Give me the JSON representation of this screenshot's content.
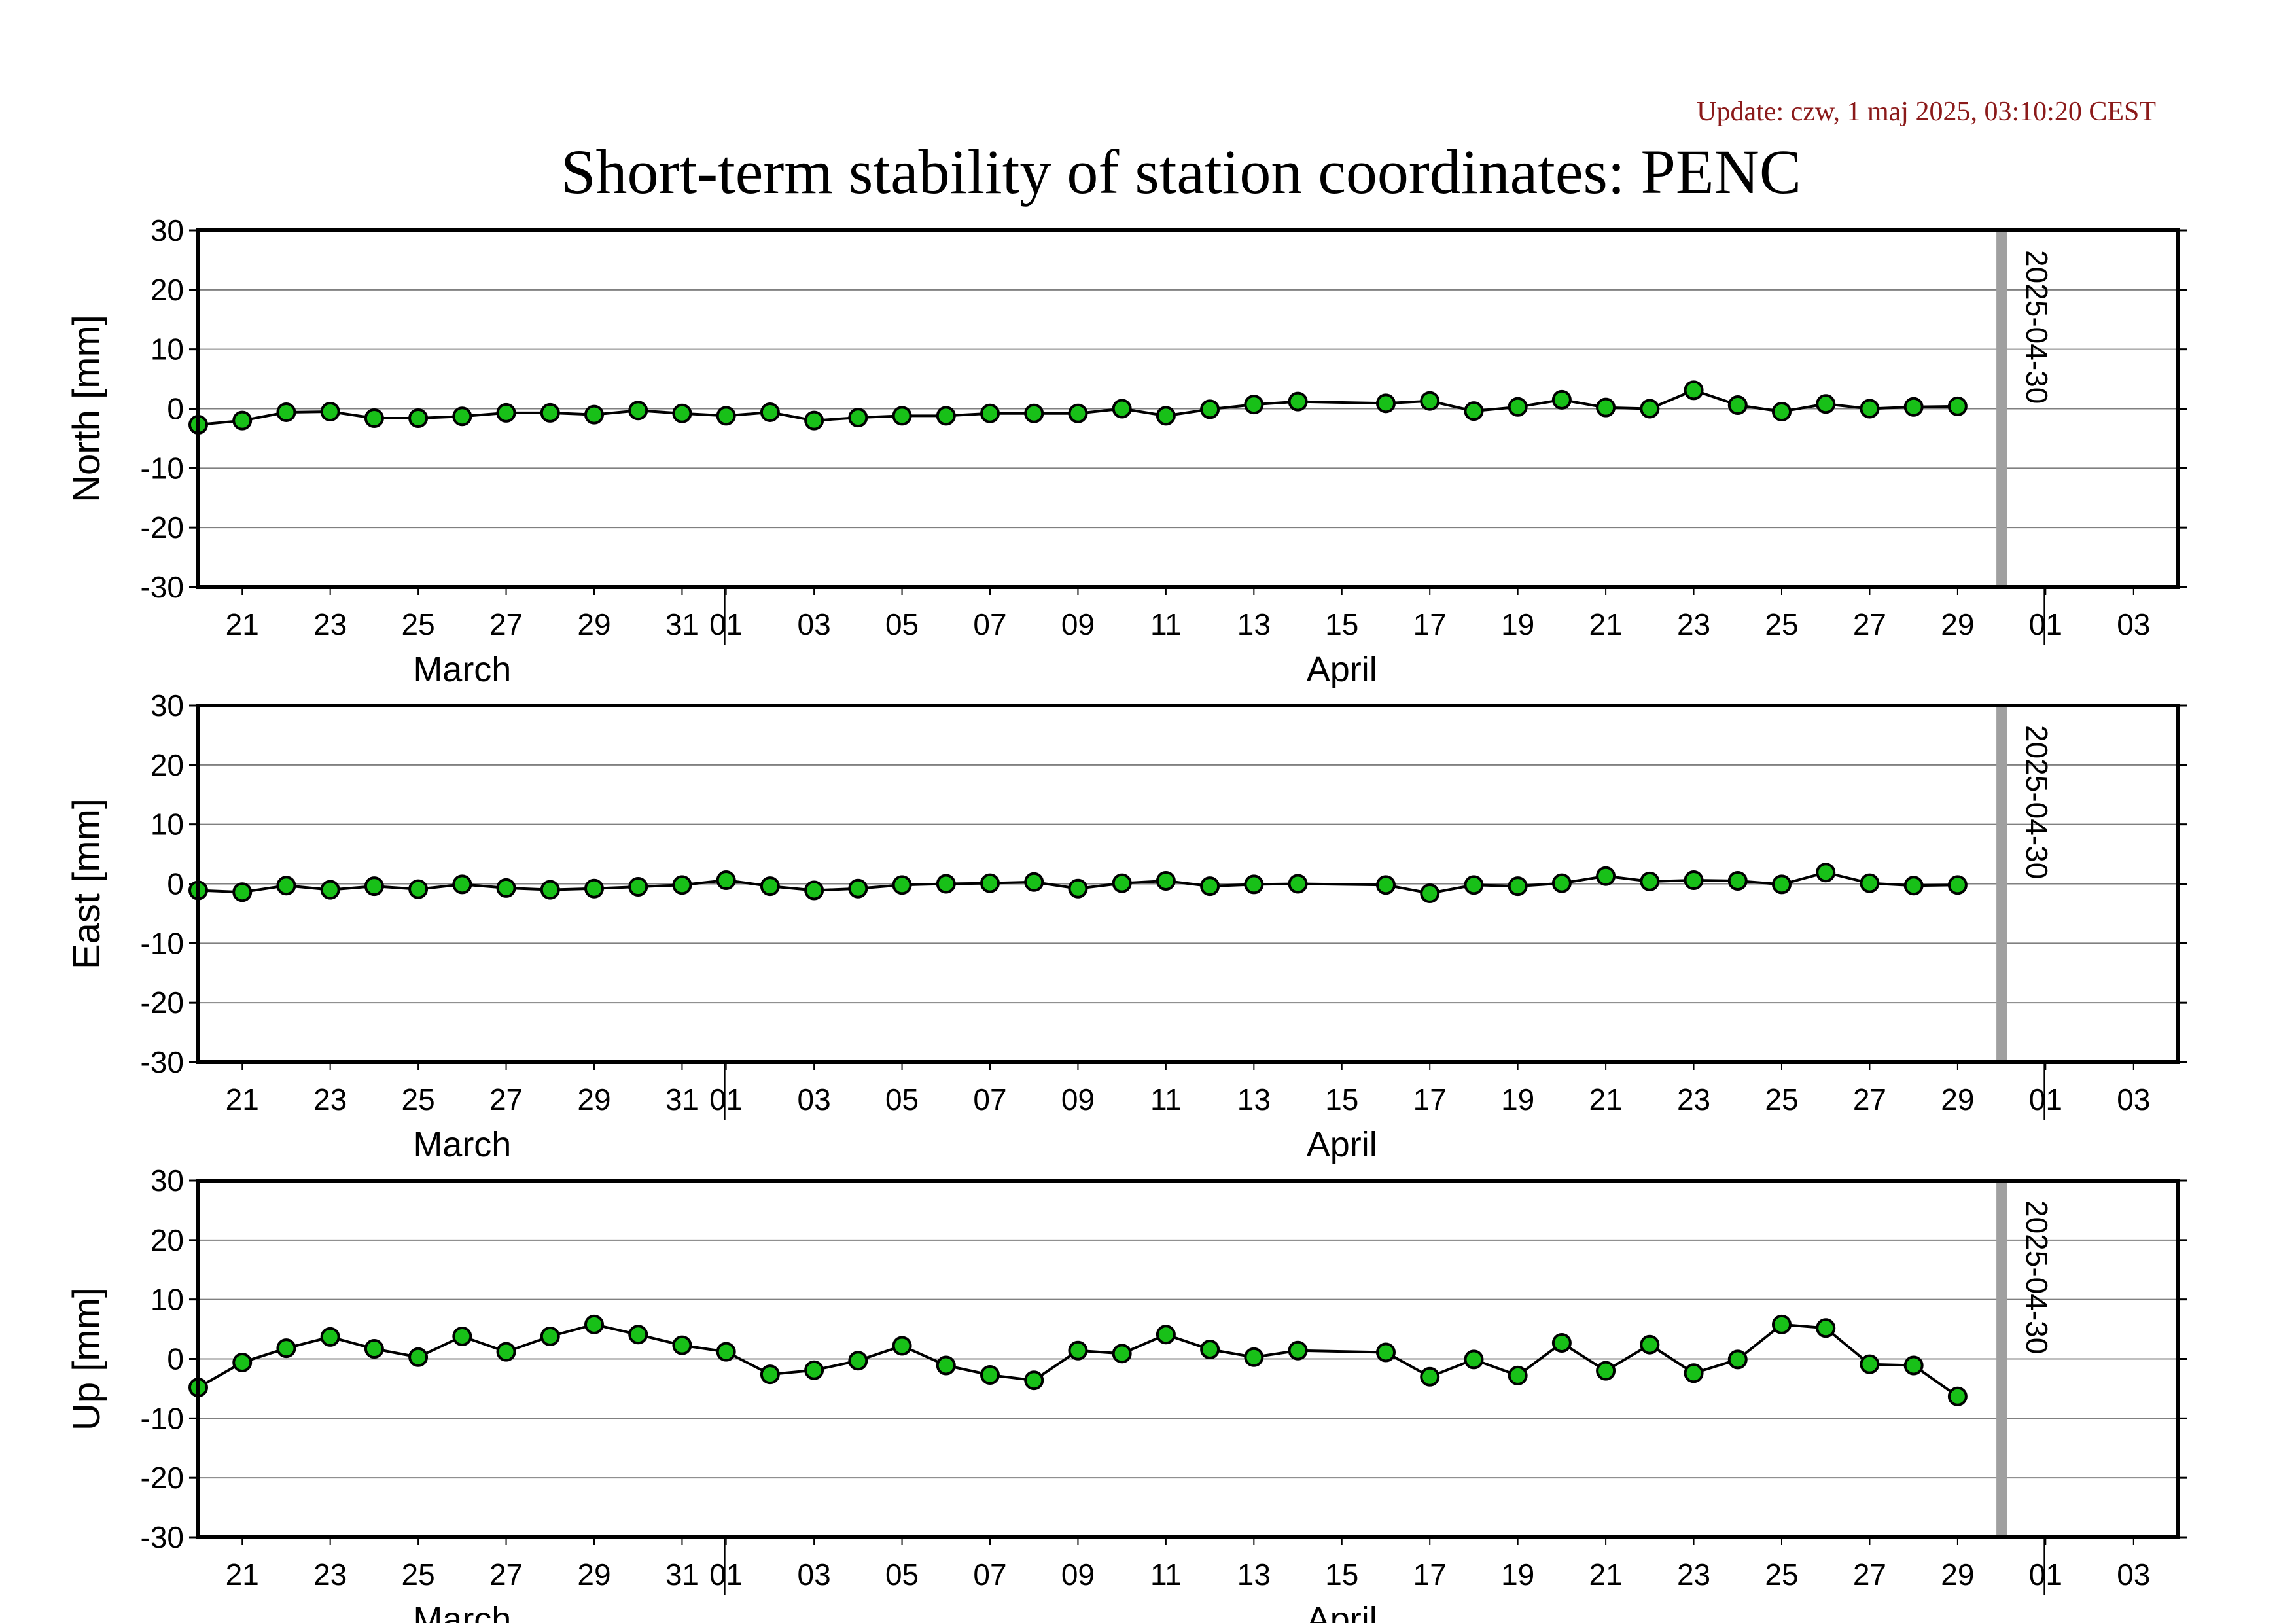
{
  "update_text": "Update: czw, 1 maj 2025, 03:10:20 CEST",
  "title": "Short-term stability of station coordinates: PENC",
  "colors": {
    "update": "#8b1a1a",
    "point_fill": "#18c018",
    "marker_line": "#a0a0a0",
    "grid": "#808080"
  },
  "chart_data": {
    "type": "line",
    "x_range": [
      "2025-03-20",
      "2025-05-04"
    ],
    "x_tick_labels": [
      "21",
      "23",
      "25",
      "27",
      "29",
      "31",
      "01",
      "03",
      "05",
      "07",
      "09",
      "11",
      "13",
      "15",
      "17",
      "19",
      "21",
      "23",
      "25",
      "27",
      "29",
      "01",
      "03"
    ],
    "x_tick_dates": [
      "2025-03-21",
      "2025-03-23",
      "2025-03-25",
      "2025-03-27",
      "2025-03-29",
      "2025-03-31",
      "2025-04-01",
      "2025-04-03",
      "2025-04-05",
      "2025-04-07",
      "2025-04-09",
      "2025-04-11",
      "2025-04-13",
      "2025-04-15",
      "2025-04-17",
      "2025-04-19",
      "2025-04-21",
      "2025-04-23",
      "2025-04-25",
      "2025-04-27",
      "2025-04-29",
      "2025-05-01",
      "2025-05-03"
    ],
    "month_labels": [
      {
        "label": "March",
        "date": "2025-03-26"
      },
      {
        "label": "April",
        "date": "2025-04-15"
      }
    ],
    "month_boundaries": [
      "2025-04-01",
      "2025-05-01"
    ],
    "marker": {
      "date": "2025-04-30",
      "label": "2025-04-30"
    },
    "ylim": [
      -30,
      30
    ],
    "y_ticks": [
      30,
      20,
      10,
      0,
      -10,
      -20,
      -30
    ],
    "grid": true,
    "panels": [
      {
        "ylabel": "North [mm]",
        "points": [
          [
            "2025-03-20",
            -2.7
          ],
          [
            "2025-03-21",
            -2.0
          ],
          [
            "2025-03-22",
            -0.6
          ],
          [
            "2025-03-23",
            -0.5
          ],
          [
            "2025-03-24",
            -1.6
          ],
          [
            "2025-03-25",
            -1.6
          ],
          [
            "2025-03-26",
            -1.3
          ],
          [
            "2025-03-27",
            -0.7
          ],
          [
            "2025-03-28",
            -0.7
          ],
          [
            "2025-03-29",
            -1.0
          ],
          [
            "2025-03-30",
            -0.3
          ],
          [
            "2025-03-31",
            -0.8
          ],
          [
            "2025-04-01",
            -1.2
          ],
          [
            "2025-04-02",
            -0.6
          ],
          [
            "2025-04-03",
            -2.0
          ],
          [
            "2025-04-04",
            -1.5
          ],
          [
            "2025-04-05",
            -1.2
          ],
          [
            "2025-04-06",
            -1.2
          ],
          [
            "2025-04-07",
            -0.8
          ],
          [
            "2025-04-08",
            -0.8
          ],
          [
            "2025-04-09",
            -0.8
          ],
          [
            "2025-04-10",
            0.0
          ],
          [
            "2025-04-11",
            -1.2
          ],
          [
            "2025-04-12",
            -0.1
          ],
          [
            "2025-04-13",
            0.7
          ],
          [
            "2025-04-14",
            1.2
          ],
          [
            "2025-04-16",
            0.9
          ],
          [
            "2025-04-17",
            1.3
          ],
          [
            "2025-04-18",
            -0.4
          ],
          [
            "2025-04-19",
            0.3
          ],
          [
            "2025-04-20",
            1.5
          ],
          [
            "2025-04-21",
            0.2
          ],
          [
            "2025-04-22",
            0.0
          ],
          [
            "2025-04-23",
            3.1
          ],
          [
            "2025-04-24",
            0.6
          ],
          [
            "2025-04-25",
            -0.5
          ],
          [
            "2025-04-26",
            0.8
          ],
          [
            "2025-04-27",
            0.0
          ],
          [
            "2025-04-28",
            0.3
          ],
          [
            "2025-04-29",
            0.4
          ]
        ]
      },
      {
        "ylabel": "East [mm]",
        "points": [
          [
            "2025-03-20",
            -1.1
          ],
          [
            "2025-03-21",
            -1.4
          ],
          [
            "2025-03-22",
            -0.3
          ],
          [
            "2025-03-23",
            -1.0
          ],
          [
            "2025-03-24",
            -0.4
          ],
          [
            "2025-03-25",
            -0.9
          ],
          [
            "2025-03-26",
            -0.1
          ],
          [
            "2025-03-27",
            -0.7
          ],
          [
            "2025-03-28",
            -1.0
          ],
          [
            "2025-03-29",
            -0.8
          ],
          [
            "2025-03-30",
            -0.5
          ],
          [
            "2025-03-31",
            -0.2
          ],
          [
            "2025-04-01",
            0.6
          ],
          [
            "2025-04-02",
            -0.4
          ],
          [
            "2025-04-03",
            -1.1
          ],
          [
            "2025-04-04",
            -0.8
          ],
          [
            "2025-04-05",
            -0.2
          ],
          [
            "2025-04-06",
            0.0
          ],
          [
            "2025-04-07",
            0.1
          ],
          [
            "2025-04-08",
            0.3
          ],
          [
            "2025-04-09",
            -0.8
          ],
          [
            "2025-04-10",
            0.1
          ],
          [
            "2025-04-11",
            0.5
          ],
          [
            "2025-04-12",
            -0.4
          ],
          [
            "2025-04-13",
            -0.1
          ],
          [
            "2025-04-14",
            0.0
          ],
          [
            "2025-04-16",
            -0.2
          ],
          [
            "2025-04-17",
            -1.6
          ],
          [
            "2025-04-18",
            -0.2
          ],
          [
            "2025-04-19",
            -0.4
          ],
          [
            "2025-04-20",
            0.1
          ],
          [
            "2025-04-21",
            1.3
          ],
          [
            "2025-04-22",
            0.4
          ],
          [
            "2025-04-23",
            0.6
          ],
          [
            "2025-04-24",
            0.5
          ],
          [
            "2025-04-25",
            -0.1
          ],
          [
            "2025-04-26",
            1.9
          ],
          [
            "2025-04-27",
            0.1
          ],
          [
            "2025-04-28",
            -0.3
          ],
          [
            "2025-04-29",
            -0.2
          ]
        ]
      },
      {
        "ylabel": "Up [mm]",
        "points": [
          [
            "2025-03-20",
            -4.8
          ],
          [
            "2025-03-21",
            -0.6
          ],
          [
            "2025-03-22",
            1.8
          ],
          [
            "2025-03-23",
            3.7
          ],
          [
            "2025-03-24",
            1.7
          ],
          [
            "2025-03-25",
            0.3
          ],
          [
            "2025-03-26",
            3.8
          ],
          [
            "2025-03-27",
            1.2
          ],
          [
            "2025-03-28",
            3.8
          ],
          [
            "2025-03-29",
            5.8
          ],
          [
            "2025-03-30",
            4.1
          ],
          [
            "2025-03-31",
            2.3
          ],
          [
            "2025-04-01",
            1.2
          ],
          [
            "2025-04-02",
            -2.6
          ],
          [
            "2025-04-03",
            -1.9
          ],
          [
            "2025-04-04",
            -0.3
          ],
          [
            "2025-04-05",
            2.2
          ],
          [
            "2025-04-06",
            -1.1
          ],
          [
            "2025-04-07",
            -2.7
          ],
          [
            "2025-04-08",
            -3.6
          ],
          [
            "2025-04-09",
            1.4
          ],
          [
            "2025-04-10",
            0.9
          ],
          [
            "2025-04-11",
            4.1
          ],
          [
            "2025-04-12",
            1.6
          ],
          [
            "2025-04-13",
            0.3
          ],
          [
            "2025-04-14",
            1.4
          ],
          [
            "2025-04-16",
            1.1
          ],
          [
            "2025-04-17",
            -3.0
          ],
          [
            "2025-04-18",
            -0.1
          ],
          [
            "2025-04-19",
            -2.8
          ],
          [
            "2025-04-20",
            2.7
          ],
          [
            "2025-04-21",
            -2.0
          ],
          [
            "2025-04-22",
            2.4
          ],
          [
            "2025-04-23",
            -2.4
          ],
          [
            "2025-04-24",
            -0.1
          ],
          [
            "2025-04-25",
            5.8
          ],
          [
            "2025-04-26",
            5.2
          ],
          [
            "2025-04-27",
            -0.9
          ],
          [
            "2025-04-28",
            -1.1
          ],
          [
            "2025-04-29",
            -6.3
          ]
        ]
      }
    ]
  }
}
